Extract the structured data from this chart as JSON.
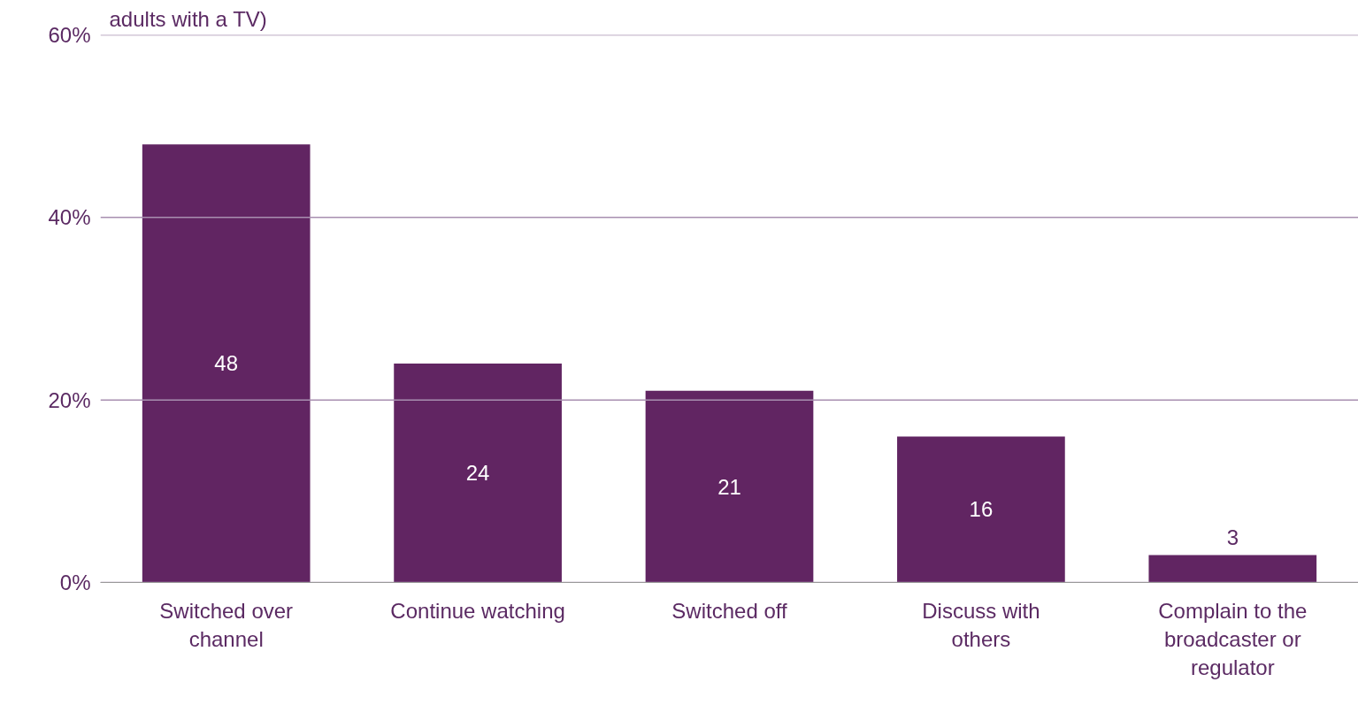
{
  "chart_data": {
    "type": "bar",
    "categories": [
      "Switched over channel",
      "Continue watching",
      "Switched off",
      "Discuss with others",
      "Complain to the broadcaster or regulator"
    ],
    "values": [
      48,
      24,
      21,
      16,
      3
    ],
    "color": "#612562",
    "ylim": [
      0,
      60
    ],
    "yticks": [
      {
        "value": 0,
        "label": "0%"
      },
      {
        "value": 20,
        "label": "20%"
      },
      {
        "value": 40,
        "label": "40%"
      },
      {
        "value": 60,
        "label": "60%"
      }
    ],
    "grid": "y",
    "data_labels": true,
    "annotations": [
      "adults with a TV)"
    ]
  }
}
